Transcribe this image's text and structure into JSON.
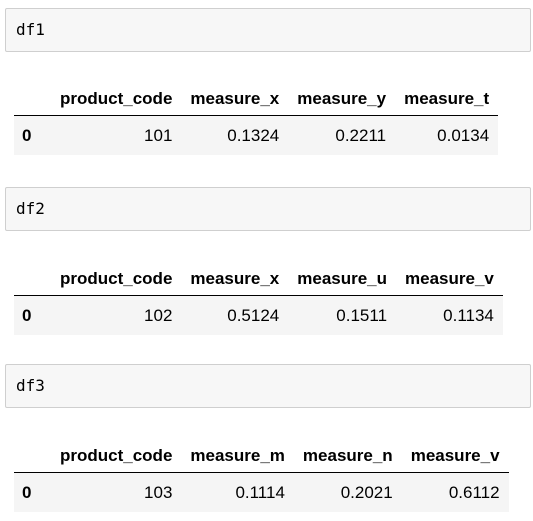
{
  "cells": [
    {
      "code": "df1",
      "table": {
        "columns": [
          "",
          "product_code",
          "measure_x",
          "measure_y",
          "measure_t"
        ],
        "rows": [
          [
            "0",
            "101",
            "0.1324",
            "0.2211",
            "0.0134"
          ]
        ]
      }
    },
    {
      "code": "df2",
      "table": {
        "columns": [
          "",
          "product_code",
          "measure_x",
          "measure_u",
          "measure_v"
        ],
        "rows": [
          [
            "0",
            "102",
            "0.5124",
            "0.1511",
            "0.1134"
          ]
        ]
      }
    },
    {
      "code": "df3",
      "table": {
        "columns": [
          "",
          "product_code",
          "measure_m",
          "measure_n",
          "measure_v"
        ],
        "rows": [
          [
            "0",
            "103",
            "0.1114",
            "0.2021",
            "0.6112"
          ]
        ]
      }
    }
  ]
}
